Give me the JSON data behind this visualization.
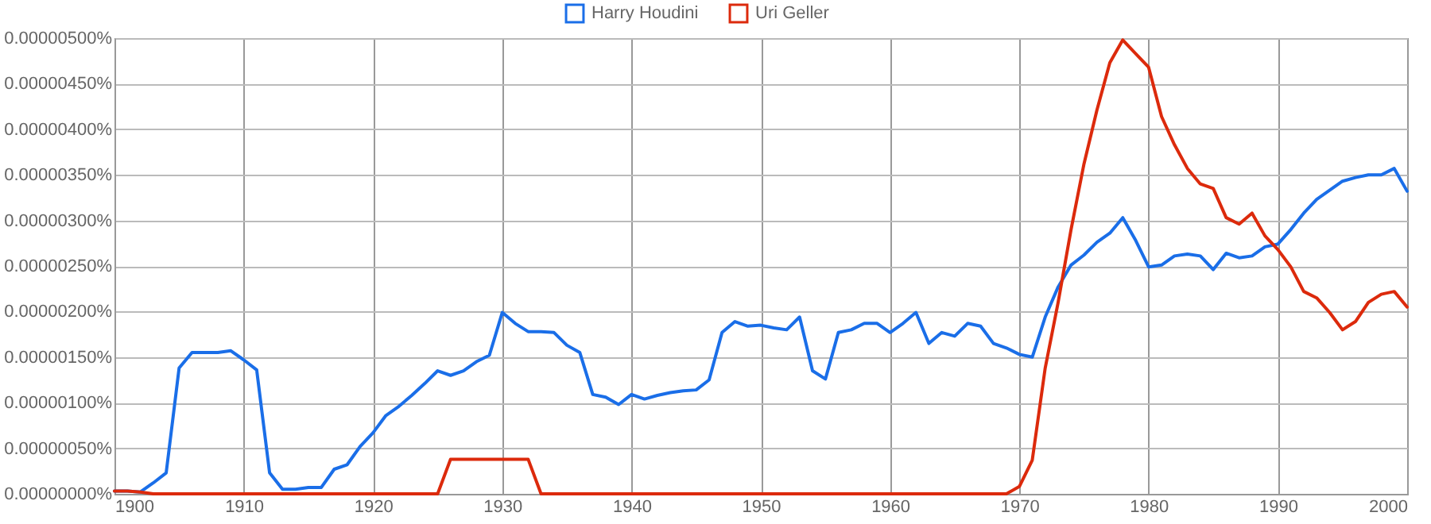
{
  "chart_data": {
    "type": "line",
    "x": [
      1900,
      1901,
      1902,
      1903,
      1904,
      1905,
      1906,
      1907,
      1908,
      1909,
      1910,
      1911,
      1912,
      1913,
      1914,
      1915,
      1916,
      1917,
      1918,
      1919,
      1920,
      1921,
      1922,
      1923,
      1924,
      1925,
      1926,
      1927,
      1928,
      1929,
      1930,
      1931,
      1932,
      1933,
      1934,
      1935,
      1936,
      1937,
      1938,
      1939,
      1940,
      1941,
      1942,
      1943,
      1944,
      1945,
      1946,
      1947,
      1948,
      1949,
      1950,
      1951,
      1952,
      1953,
      1954,
      1955,
      1956,
      1957,
      1958,
      1959,
      1960,
      1961,
      1962,
      1963,
      1964,
      1965,
      1966,
      1967,
      1968,
      1969,
      1970,
      1971,
      1972,
      1973,
      1974,
      1975,
      1976,
      1977,
      1978,
      1979,
      1980,
      1981,
      1982,
      1983,
      1984,
      1985,
      1986,
      1987,
      1988,
      1989,
      1990,
      1991,
      1992,
      1993,
      1994,
      1995,
      1996,
      1997,
      1998,
      1999,
      2000
    ],
    "series": [
      {
        "name": "Harry Houdini",
        "color": "#1a6ee8",
        "values": [
          3e-08,
          3e-08,
          2e-08,
          1.2e-07,
          2.3e-07,
          1.38e-06,
          1.55e-06,
          1.55e-06,
          1.55e-06,
          1.57e-06,
          1.47e-06,
          1.36e-06,
          2.3e-07,
          5e-08,
          5e-08,
          7e-08,
          7e-08,
          2.7e-07,
          3.2e-07,
          5.2e-07,
          6.7e-07,
          8.6e-07,
          9.6e-07,
          1.08e-06,
          1.21e-06,
          1.35e-06,
          1.3e-06,
          1.35e-06,
          1.45e-06,
          1.52e-06,
          1.99e-06,
          1.87e-06,
          1.78e-06,
          1.78e-06,
          1.77e-06,
          1.63e-06,
          1.55e-06,
          1.09e-06,
          1.06e-06,
          9.8e-07,
          1.09e-06,
          1.04e-06,
          1.08e-06,
          1.11e-06,
          1.13e-06,
          1.14e-06,
          1.25e-06,
          1.77e-06,
          1.89e-06,
          1.84e-06,
          1.85e-06,
          1.82e-06,
          1.8e-06,
          1.94e-06,
          1.35e-06,
          1.26e-06,
          1.77e-06,
          1.8e-06,
          1.87e-06,
          1.87e-06,
          1.77e-06,
          1.87e-06,
          1.99e-06,
          1.65e-06,
          1.77e-06,
          1.73e-06,
          1.87e-06,
          1.84e-06,
          1.65e-06,
          1.6e-06,
          1.53e-06,
          1.5e-06,
          1.94e-06,
          2.27e-06,
          2.51e-06,
          2.62e-06,
          2.76e-06,
          2.86e-06,
          3.03e-06,
          2.78e-06,
          2.49e-06,
          2.51e-06,
          2.61e-06,
          2.63e-06,
          2.61e-06,
          2.46e-06,
          2.64e-06,
          2.59e-06,
          2.61e-06,
          2.71e-06,
          2.74e-06,
          2.9e-06,
          3.08e-06,
          3.23e-06,
          3.33e-06,
          3.43e-06,
          3.47e-06,
          3.5e-06,
          3.5e-06,
          3.57e-06,
          3.32e-06
        ]
      },
      {
        "name": "Uri Geller",
        "color": "#dc2a0c",
        "values": [
          3e-08,
          3e-08,
          2e-08,
          0,
          0,
          0,
          0,
          0,
          0,
          0,
          0,
          0,
          0,
          0,
          0,
          0,
          0,
          0,
          0,
          0,
          0,
          0,
          0,
          0,
          0,
          0,
          3.8e-07,
          3.8e-07,
          3.8e-07,
          3.8e-07,
          3.8e-07,
          3.8e-07,
          3.8e-07,
          0,
          0,
          0,
          0,
          0,
          0,
          0,
          0,
          0,
          0,
          0,
          0,
          0,
          0,
          0,
          0,
          0,
          0,
          0,
          0,
          0,
          0,
          0,
          0,
          0,
          0,
          0,
          0,
          0,
          0,
          0,
          0,
          0,
          0,
          0,
          0,
          0,
          8e-08,
          3.7e-07,
          1.38e-06,
          2.1e-06,
          2.9e-06,
          3.62e-06,
          4.21e-06,
          4.73e-06,
          4.98e-06,
          4.83e-06,
          4.68e-06,
          4.14e-06,
          3.83e-06,
          3.57e-06,
          3.4e-06,
          3.35e-06,
          3.03e-06,
          2.96e-06,
          3.08e-06,
          2.83e-06,
          2.68e-06,
          2.49e-06,
          2.22e-06,
          2.15e-06,
          1.99e-06,
          1.8e-06,
          1.89e-06,
          2.1e-06,
          2.19e-06,
          2.22e-06,
          2.05e-06
        ]
      }
    ],
    "xlim": [
      1900,
      2000
    ],
    "xticks": [
      1900,
      1910,
      1920,
      1930,
      1940,
      1950,
      1960,
      1970,
      1980,
      1990,
      2000
    ],
    "ylim": [
      0,
      5e-06
    ],
    "yticks": [
      {
        "value": 0,
        "label": "0.00000000%"
      },
      {
        "value": 5e-07,
        "label": "0.00000050%"
      },
      {
        "value": 1e-06,
        "label": "0.00000100%"
      },
      {
        "value": 1.5e-06,
        "label": "0.00000150%"
      },
      {
        "value": 2e-06,
        "label": "0.00000200%"
      },
      {
        "value": 2.5e-06,
        "label": "0.00000250%"
      },
      {
        "value": 3e-06,
        "label": "0.00000300%"
      },
      {
        "value": 3.5e-06,
        "label": "0.00000350%"
      },
      {
        "value": 4e-06,
        "label": "0.00000400%"
      },
      {
        "value": 4.5e-06,
        "label": "0.00000450%"
      },
      {
        "value": 5e-06,
        "label": "0.00000500%"
      }
    ],
    "grid": true,
    "legend": "top",
    "marker": "none",
    "line_style": "solid"
  }
}
